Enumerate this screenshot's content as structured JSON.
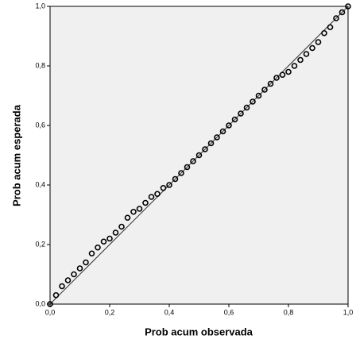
{
  "chart_data": {
    "type": "scatter",
    "xlabel": "Prob acum observada",
    "ylabel": "Prob acum esperada",
    "xlim": [
      0,
      1
    ],
    "ylim": [
      0,
      1
    ],
    "xticks": [
      {
        "value": 0,
        "label": "0,0"
      },
      {
        "value": 0.2,
        "label": "0,2"
      },
      {
        "value": 0.4,
        "label": "0,4"
      },
      {
        "value": 0.6,
        "label": "0,6"
      },
      {
        "value": 0.8,
        "label": "0,8"
      },
      {
        "value": 1,
        "label": "1,0"
      }
    ],
    "yticks": [
      {
        "value": 0,
        "label": "0,0"
      },
      {
        "value": 0.2,
        "label": "0,2"
      },
      {
        "value": 0.4,
        "label": "0,4"
      },
      {
        "value": 0.6,
        "label": "0,6"
      },
      {
        "value": 0.8,
        "label": "0,8"
      },
      {
        "value": 1,
        "label": "1,0"
      }
    ],
    "color": "#000000",
    "x": [
      0.0,
      0.02,
      0.04,
      0.06,
      0.08,
      0.1,
      0.12,
      0.14,
      0.16,
      0.18,
      0.2,
      0.22,
      0.24,
      0.26,
      0.28,
      0.3,
      0.32,
      0.34,
      0.36,
      0.38,
      0.4,
      0.42,
      0.44,
      0.46,
      0.48,
      0.5,
      0.52,
      0.54,
      0.56,
      0.58,
      0.6,
      0.62,
      0.64,
      0.66,
      0.68,
      0.7,
      0.72,
      0.74,
      0.76,
      0.78,
      0.8,
      0.82,
      0.84,
      0.86,
      0.88,
      0.9,
      0.92,
      0.94,
      0.96,
      0.98,
      1.0
    ],
    "values": [
      0.0,
      0.03,
      0.06,
      0.08,
      0.1,
      0.12,
      0.14,
      0.17,
      0.19,
      0.21,
      0.22,
      0.24,
      0.26,
      0.29,
      0.31,
      0.32,
      0.34,
      0.36,
      0.37,
      0.39,
      0.4,
      0.42,
      0.44,
      0.46,
      0.48,
      0.5,
      0.52,
      0.54,
      0.56,
      0.58,
      0.6,
      0.62,
      0.64,
      0.66,
      0.68,
      0.7,
      0.72,
      0.74,
      0.76,
      0.77,
      0.78,
      0.8,
      0.82,
      0.84,
      0.86,
      0.88,
      0.91,
      0.93,
      0.96,
      0.98,
      1.0
    ]
  }
}
